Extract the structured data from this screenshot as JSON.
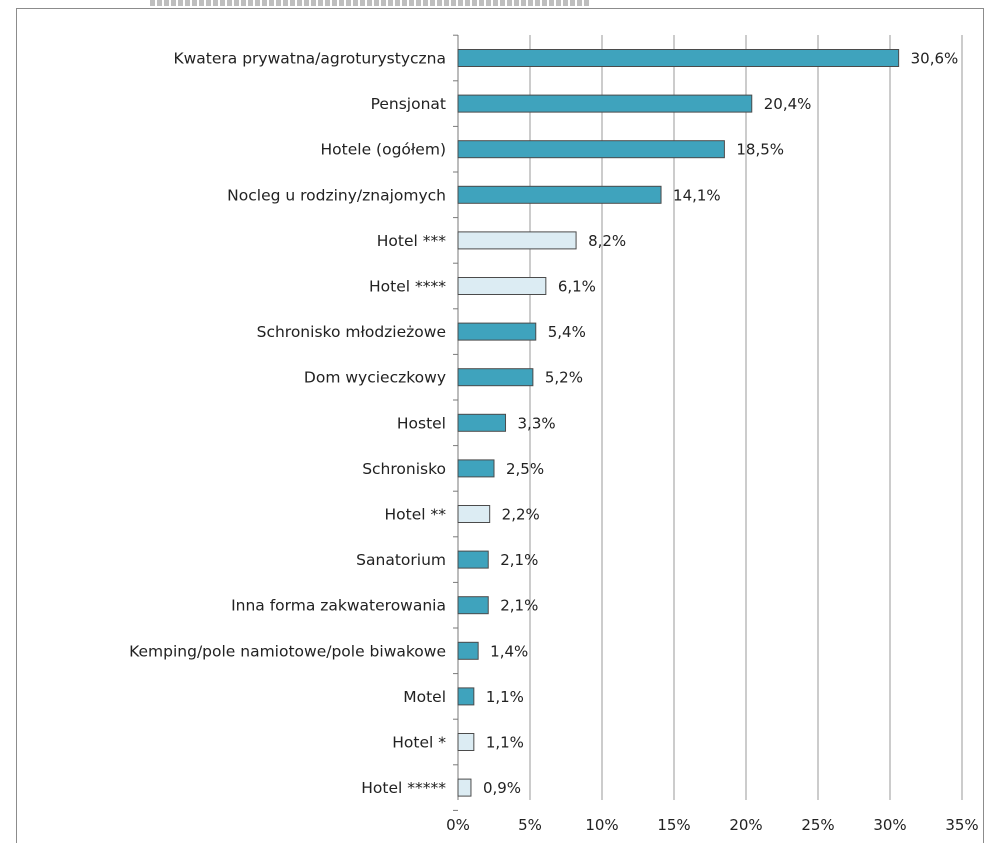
{
  "chart_data": {
    "type": "bar",
    "orientation": "horizontal",
    "title": "",
    "xlabel": "",
    "ylabel": "",
    "xlim": [
      0,
      35
    ],
    "x_ticks": [
      "0%",
      "5%",
      "10%",
      "15%",
      "20%",
      "25%",
      "30%",
      "35%"
    ],
    "grid": "vertical",
    "colors": {
      "general": "#3fa3bd",
      "hotel_category": "#dcecf3",
      "bar_border": "#4b4b4b",
      "grid": "#9a9a9a"
    },
    "categories": [
      "Kwatera prywatna/agroturystyczna",
      "Pensjonat",
      "Hotele (ogółem)",
      "Nocleg u rodziny/znajomych",
      "Hotel ***",
      "Hotel ****",
      "Schronisko młodzieżowe",
      "Dom wycieczkowy",
      "Hostel",
      "Schronisko",
      "Hotel **",
      "Sanatorium",
      "Inna forma zakwaterowania",
      "Kemping/pole namiotowe/pole biwakowe",
      "Motel",
      "Hotel *",
      "Hotel *****"
    ],
    "values": [
      30.6,
      20.4,
      18.5,
      14.1,
      8.2,
      6.1,
      5.4,
      5.2,
      3.3,
      2.5,
      2.2,
      2.1,
      2.1,
      1.4,
      1.1,
      1.1,
      0.9
    ],
    "value_labels": [
      "30,6%",
      "20,4%",
      "18,5%",
      "14,1%",
      "8,2%",
      "6,1%",
      "5,4%",
      "5,2%",
      "3,3%",
      "2,5%",
      "2,2%",
      "2,1%",
      "2,1%",
      "1,4%",
      "1,1%",
      "1,1%",
      "0,9%"
    ],
    "highlight": [
      "general",
      "general",
      "general",
      "general",
      "hotel_category",
      "hotel_category",
      "general",
      "general",
      "general",
      "general",
      "hotel_category",
      "general",
      "general",
      "general",
      "general",
      "hotel_category",
      "hotel_category"
    ]
  }
}
